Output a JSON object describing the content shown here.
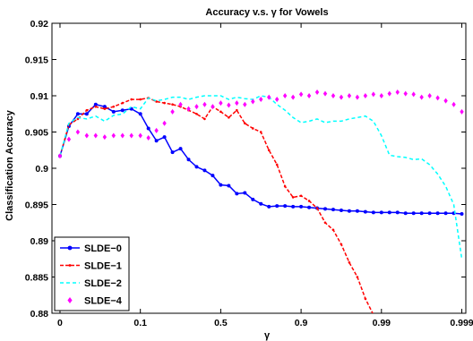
{
  "chart_data": {
    "type": "line",
    "title": "Accuracy v.s. γ for Vowels",
    "xlabel": "γ",
    "ylabel": "Classification Accuracy",
    "xticks": [
      {
        "label": "0",
        "pos": 0
      },
      {
        "label": "0.1",
        "pos": 1
      },
      {
        "label": "0.5",
        "pos": 2
      },
      {
        "label": "0.9",
        "pos": 3
      },
      {
        "label": "0.99",
        "pos": 4
      },
      {
        "label": "0.999",
        "pos": 5
      }
    ],
    "xlim": [
      -0.1,
      5.05
    ],
    "ylim": [
      0.88,
      0.92
    ],
    "yticks": [
      {
        "label": "0.88",
        "value": 0.88
      },
      {
        "label": "0.885",
        "value": 0.885
      },
      {
        "label": "0.89",
        "value": 0.89
      },
      {
        "label": "0.895",
        "value": 0.895
      },
      {
        "label": "0.9",
        "value": 0.9
      },
      {
        "label": "0.905",
        "value": 0.905
      },
      {
        "label": "0.91",
        "value": 0.91
      },
      {
        "label": "0.915",
        "value": 0.915
      },
      {
        "label": "0.92",
        "value": 0.92
      }
    ],
    "grid": false,
    "legend_position": "bottom-left",
    "series": [
      {
        "name": "SLDE−0",
        "color": "#0000ff",
        "style": "solid-dot",
        "x": [
          0,
          0.111,
          0.222,
          0.333,
          0.444,
          0.556,
          0.667,
          0.778,
          0.889,
          1.0,
          1.1,
          1.2,
          1.3,
          1.4,
          1.5,
          1.6,
          1.7,
          1.8,
          1.9,
          2.0,
          2.1,
          2.2,
          2.3,
          2.4,
          2.5,
          2.6,
          2.7,
          2.8,
          2.9,
          3.0,
          3.1,
          3.2,
          3.3,
          3.4,
          3.5,
          3.6,
          3.7,
          3.8,
          3.9,
          4.0,
          4.1,
          4.2,
          4.3,
          4.4,
          4.5,
          4.6,
          4.7,
          4.8,
          4.9,
          5.0
        ],
        "y": [
          0.9017,
          0.9058,
          0.9075,
          0.9075,
          0.9088,
          0.9085,
          0.9078,
          0.908,
          0.9082,
          0.9075,
          0.9055,
          0.9038,
          0.9043,
          0.9022,
          0.9027,
          0.9012,
          0.9002,
          0.8997,
          0.899,
          0.8977,
          0.8976,
          0.8965,
          0.8966,
          0.8957,
          0.8951,
          0.8947,
          0.8948,
          0.8948,
          0.8947,
          0.8947,
          0.8946,
          0.8945,
          0.8944,
          0.8943,
          0.8942,
          0.8941,
          0.8941,
          0.894,
          0.8939,
          0.8939,
          0.8939,
          0.8939,
          0.8938,
          0.8938,
          0.8938,
          0.8938,
          0.8938,
          0.8938,
          0.8938,
          0.8937
        ]
      },
      {
        "name": "SLDE−1",
        "color": "#ff0000",
        "style": "dash-dot",
        "x": [
          0,
          0.111,
          0.222,
          0.333,
          0.444,
          0.556,
          0.667,
          0.778,
          0.889,
          1.0,
          1.1,
          1.2,
          1.3,
          1.4,
          1.5,
          1.6,
          1.7,
          1.8,
          1.9,
          2.0,
          2.1,
          2.2,
          2.3,
          2.4,
          2.5,
          2.6,
          2.7,
          2.8,
          2.9,
          3.0,
          3.1,
          3.2,
          3.3,
          3.4,
          3.5,
          3.6,
          3.7,
          3.8,
          3.9,
          4.0,
          4.05
        ],
        "y": [
          0.9017,
          0.906,
          0.9068,
          0.908,
          0.9085,
          0.9082,
          0.9085,
          0.909,
          0.9095,
          0.9095,
          0.9097,
          0.9092,
          0.909,
          0.9088,
          0.9085,
          0.908,
          0.9075,
          0.9068,
          0.9085,
          0.9078,
          0.907,
          0.908,
          0.9062,
          0.9055,
          0.905,
          0.9025,
          0.9005,
          0.8975,
          0.896,
          0.8962,
          0.8955,
          0.8945,
          0.8925,
          0.8915,
          0.8895,
          0.887,
          0.885,
          0.882,
          0.8798,
          0.8778,
          0.8765
        ]
      },
      {
        "name": "SLDE−2",
        "color": "#00ffff",
        "style": "dashed",
        "x": [
          0,
          0.111,
          0.222,
          0.333,
          0.444,
          0.556,
          0.667,
          0.778,
          0.889,
          1.0,
          1.1,
          1.2,
          1.3,
          1.4,
          1.5,
          1.6,
          1.7,
          1.8,
          1.9,
          2.0,
          2.1,
          2.2,
          2.3,
          2.4,
          2.5,
          2.6,
          2.7,
          2.8,
          2.9,
          3.0,
          3.1,
          3.2,
          3.3,
          3.4,
          3.5,
          3.6,
          3.7,
          3.8,
          3.9,
          4.0,
          4.1,
          4.2,
          4.3,
          4.4,
          4.5,
          4.6,
          4.7,
          4.8,
          4.9,
          5.0
        ],
        "y": [
          0.9017,
          0.9062,
          0.907,
          0.9068,
          0.9072,
          0.9065,
          0.9073,
          0.9075,
          0.9085,
          0.9082,
          0.9097,
          0.9093,
          0.9095,
          0.9098,
          0.9098,
          0.9095,
          0.9098,
          0.91,
          0.91,
          0.91,
          0.9095,
          0.9098,
          0.9096,
          0.9095,
          0.91,
          0.9098,
          0.9088,
          0.908,
          0.907,
          0.9063,
          0.9065,
          0.9068,
          0.9063,
          0.9065,
          0.9065,
          0.9068,
          0.907,
          0.9072,
          0.9065,
          0.9045,
          0.9018,
          0.9016,
          0.9015,
          0.9012,
          0.9013,
          0.9005,
          0.8992,
          0.8975,
          0.895,
          0.8875
        ]
      },
      {
        "name": "SLDE−4",
        "color": "#ff00ff",
        "style": "diamond",
        "x": [
          0,
          0.111,
          0.222,
          0.333,
          0.444,
          0.556,
          0.667,
          0.778,
          0.889,
          1.0,
          1.1,
          1.2,
          1.3,
          1.4,
          1.5,
          1.6,
          1.7,
          1.8,
          1.9,
          2.0,
          2.1,
          2.2,
          2.3,
          2.4,
          2.5,
          2.6,
          2.7,
          2.8,
          2.9,
          3.0,
          3.1,
          3.2,
          3.3,
          3.4,
          3.5,
          3.6,
          3.7,
          3.8,
          3.9,
          4.0,
          4.1,
          4.2,
          4.3,
          4.4,
          4.5,
          4.6,
          4.7,
          4.8,
          4.9,
          5.0
        ],
        "y": [
          0.9017,
          0.904,
          0.905,
          0.9045,
          0.9045,
          0.9043,
          0.9045,
          0.9045,
          0.9045,
          0.9045,
          0.9042,
          0.9052,
          0.9062,
          0.9078,
          0.9088,
          0.9082,
          0.9085,
          0.9088,
          0.9085,
          0.909,
          0.9087,
          0.909,
          0.9088,
          0.9092,
          0.9095,
          0.9098,
          0.9095,
          0.91,
          0.9098,
          0.9102,
          0.91,
          0.9105,
          0.9103,
          0.91,
          0.9098,
          0.91,
          0.9098,
          0.91,
          0.9102,
          0.91,
          0.9103,
          0.9105,
          0.9103,
          0.9102,
          0.9098,
          0.91,
          0.9097,
          0.9093,
          0.9088,
          0.9078
        ]
      }
    ]
  }
}
